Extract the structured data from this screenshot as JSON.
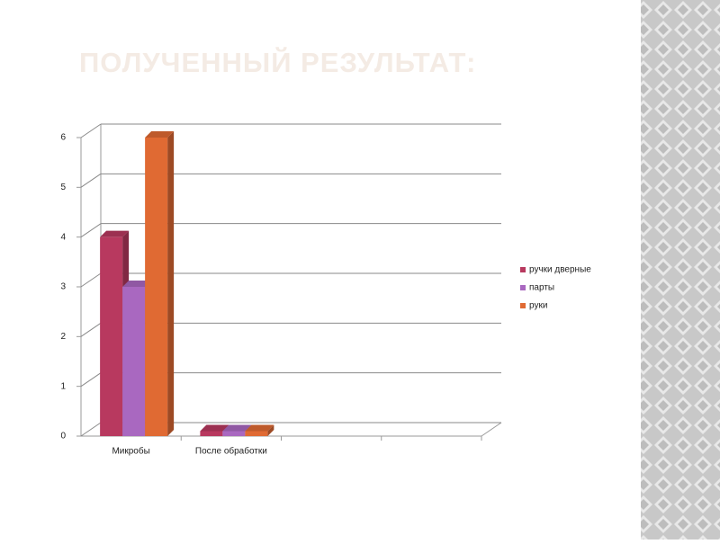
{
  "title": "ПОЛУЧЕННЫЙ РЕЗУЛЬТАТ:",
  "chart_data": {
    "type": "bar",
    "view": "3d",
    "categories": [
      "Микробы",
      "После обработки",
      null,
      null
    ],
    "series": [
      {
        "name": "ручки дверные",
        "color": "#b8395f",
        "values": [
          4,
          0.1,
          null,
          null
        ]
      },
      {
        "name": "парты",
        "color": "#a968c0",
        "values": [
          3,
          0.1,
          null,
          null
        ]
      },
      {
        "name": "руки",
        "color": "#e06a33",
        "values": [
          6,
          0.1,
          null,
          null
        ]
      }
    ],
    "ylim": [
      0,
      6
    ],
    "yticks": [
      0,
      1,
      2,
      3,
      4,
      5,
      6
    ],
    "grid": true,
    "legend": "right"
  }
}
